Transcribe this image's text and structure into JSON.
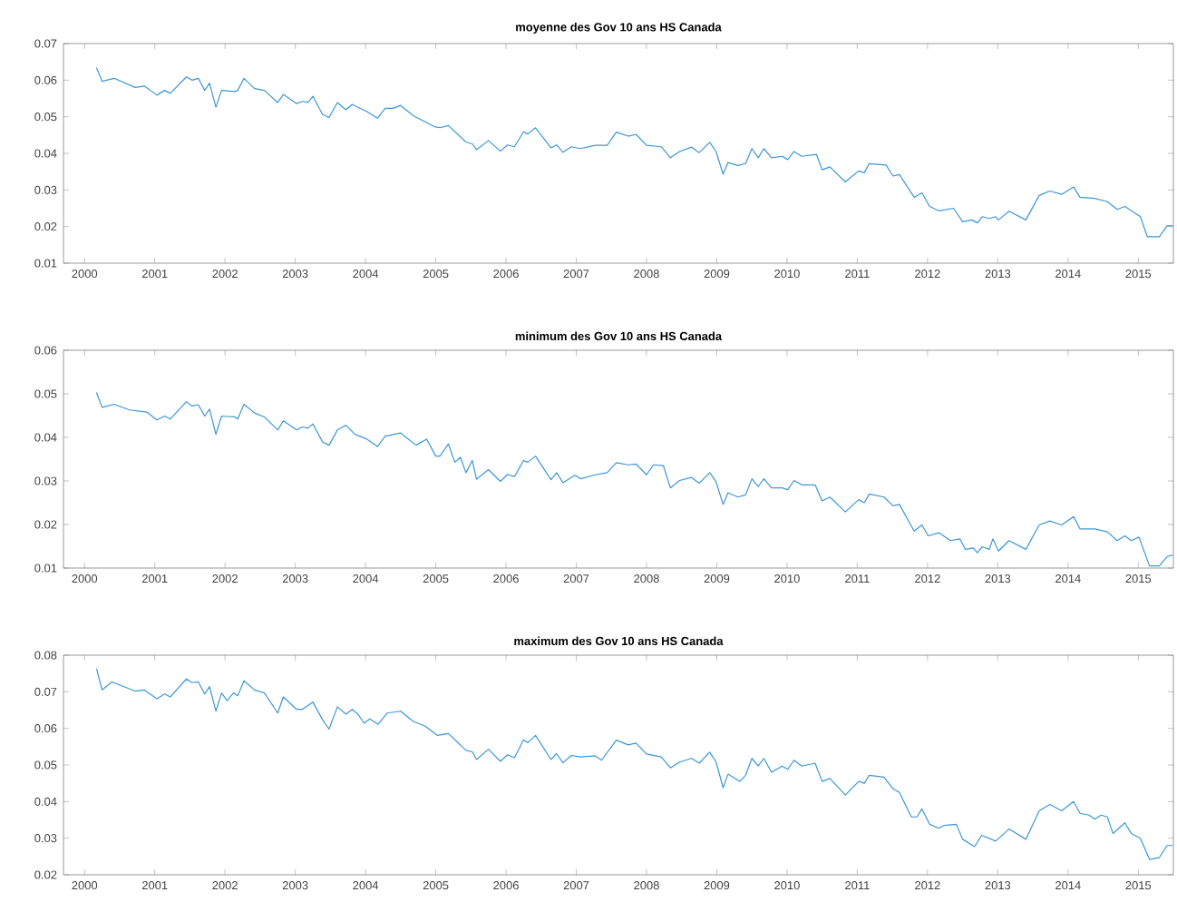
{
  "chart_data": [
    {
      "type": "line",
      "title": "moyenne des Gov 10 ans HS Canada",
      "color": "#3d97d6",
      "xlim": [
        1999.7,
        2015.5
      ],
      "ylim": [
        0.01,
        0.07
      ],
      "xticks": [
        2000,
        2001,
        2002,
        2003,
        2004,
        2005,
        2006,
        2007,
        2008,
        2009,
        2010,
        2011,
        2012,
        2013,
        2014,
        2015
      ],
      "yticks": [
        0.01,
        0.02,
        0.03,
        0.04,
        0.05,
        0.06,
        0.07
      ],
      "x": [
        2000.17,
        2000.25,
        2000.42,
        2000.72,
        2000.85,
        2001.03,
        2001.14,
        2001.22,
        2001.45,
        2001.53,
        2001.62,
        2001.71,
        2001.78,
        2001.87,
        2001.95,
        2002.14,
        2002.18,
        2002.27,
        2002.42,
        2002.56,
        2002.75,
        2002.83,
        2003.02,
        2003.1,
        2003.18,
        2003.25,
        2003.39,
        2003.48,
        2003.6,
        2003.72,
        2003.81,
        2004.02,
        2004.17,
        2004.28,
        2004.39,
        2004.5,
        2004.68,
        2004.98,
        2005.06,
        2005.18,
        2005.43,
        2005.52,
        2005.58,
        2005.75,
        2005.92,
        2006.02,
        2006.12,
        2006.25,
        2006.31,
        2006.42,
        2006.64,
        2006.72,
        2006.81,
        2006.93,
        2007.06,
        2007.27,
        2007.44,
        2007.57,
        2007.74,
        2007.85,
        2008.0,
        2008.21,
        2008.34,
        2008.47,
        2008.64,
        2008.75,
        2008.9,
        2008.99,
        2009.09,
        2009.16,
        2009.3,
        2009.41,
        2009.5,
        2009.59,
        2009.67,
        2009.78,
        2009.93,
        2010.01,
        2010.1,
        2010.21,
        2010.42,
        2010.5,
        2010.61,
        2010.83,
        2011.02,
        2011.1,
        2011.17,
        2011.41,
        2011.51,
        2011.6,
        2011.81,
        2011.92,
        2012.03,
        2012.16,
        2012.37,
        2012.5,
        2012.63,
        2012.71,
        2012.78,
        2012.88,
        2012.97,
        2013.01,
        2013.16,
        2013.4,
        2013.59,
        2013.74,
        2013.91,
        2014.08,
        2014.17,
        2014.38,
        2014.56,
        2014.7,
        2014.81,
        2015.03,
        2015.13,
        2015.3,
        2015.41,
        2015.49
      ],
      "values": [
        0.0634,
        0.0597,
        0.0605,
        0.058,
        0.0584,
        0.0559,
        0.0572,
        0.0564,
        0.0609,
        0.06,
        0.0605,
        0.0572,
        0.0592,
        0.0526,
        0.0572,
        0.0569,
        0.0572,
        0.0605,
        0.0577,
        0.0572,
        0.0539,
        0.0561,
        0.0536,
        0.0542,
        0.0539,
        0.0556,
        0.0506,
        0.0498,
        0.0539,
        0.0519,
        0.0534,
        0.0514,
        0.0496,
        0.0523,
        0.0523,
        0.0531,
        0.0503,
        0.0473,
        0.047,
        0.0476,
        0.0431,
        0.0426,
        0.041,
        0.0435,
        0.0406,
        0.0423,
        0.0418,
        0.0459,
        0.0453,
        0.047,
        0.0415,
        0.0423,
        0.0403,
        0.0418,
        0.0413,
        0.0422,
        0.0422,
        0.0458,
        0.0447,
        0.0452,
        0.0422,
        0.0418,
        0.0388,
        0.0405,
        0.0417,
        0.0402,
        0.043,
        0.0405,
        0.0343,
        0.0375,
        0.0367,
        0.0372,
        0.0413,
        0.0388,
        0.0413,
        0.0388,
        0.0392,
        0.0383,
        0.0405,
        0.0392,
        0.0397,
        0.0355,
        0.0363,
        0.0322,
        0.0352,
        0.0347,
        0.0372,
        0.0368,
        0.0338,
        0.0342,
        0.028,
        0.0292,
        0.0255,
        0.0243,
        0.025,
        0.0213,
        0.0218,
        0.021,
        0.0227,
        0.0222,
        0.0227,
        0.0218,
        0.0242,
        0.0218,
        0.0285,
        0.0297,
        0.0288,
        0.0308,
        0.028,
        0.0277,
        0.0268,
        0.0247,
        0.0255,
        0.0227,
        0.0172,
        0.0172,
        0.0202,
        0.0202
      ]
    },
    {
      "type": "line",
      "title": "minimum des Gov 10 ans HS Canada",
      "color": "#3d97d6",
      "xlim": [
        1999.7,
        2015.5
      ],
      "ylim": [
        0.01,
        0.06
      ],
      "xticks": [
        2000,
        2001,
        2002,
        2003,
        2004,
        2005,
        2006,
        2007,
        2008,
        2009,
        2010,
        2011,
        2012,
        2013,
        2014,
        2015
      ],
      "yticks": [
        0.01,
        0.02,
        0.03,
        0.04,
        0.05,
        0.06
      ],
      "x": [
        2000.17,
        2000.25,
        2000.42,
        2000.64,
        2000.89,
        2001.03,
        2001.14,
        2001.22,
        2001.45,
        2001.53,
        2001.62,
        2001.71,
        2001.78,
        2001.87,
        2001.95,
        2002.14,
        2002.18,
        2002.27,
        2002.42,
        2002.56,
        2002.75,
        2002.83,
        2003.02,
        2003.1,
        2003.18,
        2003.25,
        2003.39,
        2003.48,
        2003.6,
        2003.72,
        2003.85,
        2004.02,
        2004.17,
        2004.28,
        2004.5,
        2004.72,
        2004.87,
        2005.0,
        2005.06,
        2005.18,
        2005.27,
        2005.35,
        2005.43,
        2005.52,
        2005.58,
        2005.75,
        2005.92,
        2006.02,
        2006.12,
        2006.25,
        2006.31,
        2006.42,
        2006.64,
        2006.72,
        2006.81,
        2006.98,
        2007.06,
        2007.27,
        2007.44,
        2007.57,
        2007.74,
        2007.85,
        2008.0,
        2008.1,
        2008.24,
        2008.34,
        2008.47,
        2008.64,
        2008.75,
        2008.9,
        2008.99,
        2009.09,
        2009.16,
        2009.3,
        2009.41,
        2009.5,
        2009.59,
        2009.67,
        2009.78,
        2009.93,
        2010.01,
        2010.1,
        2010.21,
        2010.4,
        2010.5,
        2010.61,
        2010.83,
        2011.02,
        2011.1,
        2011.17,
        2011.38,
        2011.51,
        2011.6,
        2011.81,
        2011.92,
        2012.01,
        2012.16,
        2012.33,
        2012.46,
        2012.54,
        2012.65,
        2012.71,
        2012.78,
        2012.88,
        2012.93,
        2013.01,
        2013.16,
        2013.4,
        2013.59,
        2013.74,
        2013.91,
        2014.08,
        2014.17,
        2014.38,
        2014.56,
        2014.7,
        2014.81,
        2014.9,
        2015.01,
        2015.16,
        2015.3,
        2015.41,
        2015.49
      ],
      "values": [
        0.0503,
        0.0469,
        0.0476,
        0.0463,
        0.0458,
        0.044,
        0.0449,
        0.0442,
        0.0482,
        0.0472,
        0.0475,
        0.0449,
        0.0465,
        0.0407,
        0.0449,
        0.0447,
        0.0442,
        0.0476,
        0.0456,
        0.0447,
        0.0417,
        0.0438,
        0.0417,
        0.0424,
        0.0421,
        0.0431,
        0.0389,
        0.0382,
        0.0417,
        0.0428,
        0.0407,
        0.0396,
        0.0379,
        0.0403,
        0.041,
        0.0382,
        0.0396,
        0.0357,
        0.0357,
        0.0385,
        0.0343,
        0.0354,
        0.0319,
        0.0347,
        0.0304,
        0.0326,
        0.0299,
        0.0315,
        0.031,
        0.0347,
        0.0343,
        0.0357,
        0.0303,
        0.0319,
        0.0296,
        0.0313,
        0.0305,
        0.0314,
        0.0319,
        0.0342,
        0.0337,
        0.0339,
        0.0314,
        0.0337,
        0.0335,
        0.0284,
        0.0301,
        0.0308,
        0.0295,
        0.0319,
        0.0298,
        0.0246,
        0.0273,
        0.0263,
        0.0268,
        0.0305,
        0.0287,
        0.0305,
        0.0284,
        0.0284,
        0.028,
        0.0301,
        0.0291,
        0.0291,
        0.0254,
        0.0263,
        0.0229,
        0.0257,
        0.025,
        0.027,
        0.0263,
        0.0243,
        0.0246,
        0.0185,
        0.0199,
        0.0174,
        0.0181,
        0.0163,
        0.0167,
        0.0143,
        0.0146,
        0.0135,
        0.0149,
        0.0143,
        0.0167,
        0.0139,
        0.0163,
        0.0143,
        0.0199,
        0.0208,
        0.0199,
        0.0218,
        0.019,
        0.019,
        0.0183,
        0.0163,
        0.0174,
        0.0163,
        0.0171,
        0.0105,
        0.0105,
        0.0126,
        0.013
      ]
    },
    {
      "type": "line",
      "title": "maximum des Gov 10 ans HS Canada",
      "color": "#3d97d6",
      "xlim": [
        1999.7,
        2015.5
      ],
      "ylim": [
        0.02,
        0.08
      ],
      "xticks": [
        2000,
        2001,
        2002,
        2003,
        2004,
        2005,
        2006,
        2007,
        2008,
        2009,
        2010,
        2011,
        2012,
        2013,
        2014,
        2015
      ],
      "yticks": [
        0.02,
        0.03,
        0.04,
        0.05,
        0.06,
        0.07,
        0.08
      ],
      "x": [
        2000.17,
        2000.25,
        2000.39,
        2000.52,
        2000.72,
        2000.85,
        2001.03,
        2001.14,
        2001.22,
        2001.45,
        2001.53,
        2001.62,
        2001.71,
        2001.78,
        2001.87,
        2001.95,
        2002.03,
        2002.12,
        2002.18,
        2002.27,
        2002.42,
        2002.56,
        2002.75,
        2002.83,
        2003.02,
        2003.1,
        2003.25,
        2003.39,
        2003.48,
        2003.6,
        2003.72,
        2003.81,
        2003.89,
        2003.98,
        2004.06,
        2004.18,
        2004.31,
        2004.5,
        2004.68,
        2004.85,
        2005.02,
        2005.18,
        2005.43,
        2005.52,
        2005.58,
        2005.75,
        2005.92,
        2006.02,
        2006.12,
        2006.25,
        2006.31,
        2006.42,
        2006.64,
        2006.72,
        2006.81,
        2006.93,
        2007.06,
        2007.27,
        2007.36,
        2007.57,
        2007.74,
        2007.85,
        2008.0,
        2008.21,
        2008.34,
        2008.47,
        2008.64,
        2008.75,
        2008.9,
        2008.99,
        2009.09,
        2009.16,
        2009.33,
        2009.41,
        2009.5,
        2009.59,
        2009.67,
        2009.78,
        2009.93,
        2010.01,
        2010.1,
        2010.21,
        2010.4,
        2010.5,
        2010.61,
        2010.83,
        2011.02,
        2011.1,
        2011.17,
        2011.38,
        2011.51,
        2011.6,
        2011.77,
        2011.85,
        2011.92,
        2012.03,
        2012.16,
        2012.24,
        2012.41,
        2012.5,
        2012.67,
        2012.77,
        2012.97,
        2013.16,
        2013.4,
        2013.59,
        2013.74,
        2013.91,
        2014.08,
        2014.17,
        2014.3,
        2014.38,
        2014.47,
        2014.56,
        2014.64,
        2014.81,
        2014.9,
        2015.03,
        2015.16,
        2015.3,
        2015.41,
        2015.49
      ],
      "values": [
        0.0764,
        0.0705,
        0.0727,
        0.0717,
        0.0702,
        0.0705,
        0.0681,
        0.0694,
        0.0686,
        0.0735,
        0.0725,
        0.0727,
        0.0694,
        0.0714,
        0.0647,
        0.0697,
        0.0676,
        0.0697,
        0.0689,
        0.073,
        0.0705,
        0.0697,
        0.0642,
        0.0686,
        0.0652,
        0.0652,
        0.0672,
        0.0623,
        0.0598,
        0.0659,
        0.0639,
        0.0652,
        0.0639,
        0.0614,
        0.0626,
        0.0611,
        0.0642,
        0.0647,
        0.0619,
        0.0606,
        0.0581,
        0.0586,
        0.054,
        0.0536,
        0.0515,
        0.0543,
        0.051,
        0.0528,
        0.052,
        0.0569,
        0.0561,
        0.0581,
        0.0515,
        0.0531,
        0.0506,
        0.0526,
        0.0522,
        0.0525,
        0.0513,
        0.0568,
        0.0555,
        0.056,
        0.053,
        0.0522,
        0.0492,
        0.0508,
        0.0518,
        0.0505,
        0.0535,
        0.0508,
        0.0438,
        0.0475,
        0.0455,
        0.0472,
        0.0518,
        0.0497,
        0.0518,
        0.048,
        0.0497,
        0.0488,
        0.0513,
        0.0497,
        0.0505,
        0.0455,
        0.0463,
        0.0418,
        0.0455,
        0.045,
        0.0472,
        0.0467,
        0.0435,
        0.0425,
        0.0358,
        0.0358,
        0.038,
        0.0338,
        0.0327,
        0.0335,
        0.0338,
        0.0297,
        0.0277,
        0.0308,
        0.0292,
        0.0325,
        0.0297,
        0.0375,
        0.0392,
        0.0375,
        0.04,
        0.0368,
        0.0363,
        0.0352,
        0.0363,
        0.0358,
        0.0313,
        0.0342,
        0.0313,
        0.03,
        0.0242,
        0.0247,
        0.028,
        0.028
      ]
    }
  ]
}
